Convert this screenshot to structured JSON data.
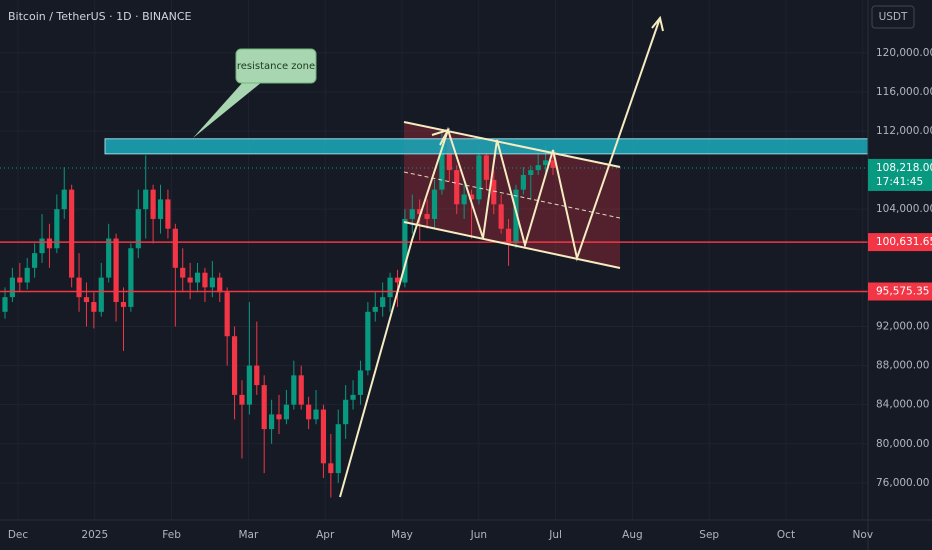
{
  "chart_data": {
    "type": "candlestick",
    "title": "Bitcoin / TetherUS · 1D · BINANCE",
    "currency": "USDT",
    "annotation": "resistance zone",
    "up_color": "#089981",
    "down_color": "#f23645",
    "ylim": [
      72200,
      125400
    ],
    "yticks": [
      {
        "value": 120000,
        "label": "120,000.00"
      },
      {
        "value": 116000,
        "label": "116,000.00"
      },
      {
        "value": 112000,
        "label": "112,000.00"
      },
      {
        "value": 104000,
        "label": "104,000.00"
      },
      {
        "value": 92000,
        "label": "92,000.00"
      },
      {
        "value": 88000,
        "label": "88,000.00"
      },
      {
        "value": 84000,
        "label": "84,000.00"
      },
      {
        "value": 80000,
        "label": "80,000.00"
      },
      {
        "value": 76000,
        "label": "76,000.00"
      }
    ],
    "xticks": [
      "Dec",
      "2025",
      "Feb",
      "Mar",
      "Apr",
      "May",
      "Jun",
      "Jul",
      "Aug",
      "Sep",
      "Oct",
      "Nov"
    ],
    "levels": [
      {
        "value": 100631.65,
        "label": "100,631.65",
        "color": "#f23645"
      },
      {
        "value": 95575.35,
        "label": "95,575.35",
        "color": "#f23645"
      }
    ],
    "current_price": {
      "value": 108218,
      "label": "108,218.00",
      "countdown": "17:41:45",
      "color": "#089981"
    },
    "resistance_zone": [
      109660,
      111200
    ],
    "candles": [
      [
        93500,
        96000,
        92800,
        95000
      ],
      [
        95000,
        98000,
        94500,
        97000
      ],
      [
        97000,
        98500,
        95500,
        96500
      ],
      [
        96500,
        99000,
        95800,
        98000
      ],
      [
        98000,
        100500,
        97000,
        99500
      ],
      [
        99500,
        103500,
        98500,
        101000
      ],
      [
        101000,
        102500,
        98000,
        100000
      ],
      [
        100000,
        105500,
        99500,
        104000
      ],
      [
        104000,
        108300,
        103000,
        106000
      ],
      [
        106000,
        106500,
        96000,
        97000
      ],
      [
        97000,
        99500,
        93500,
        95000
      ],
      [
        95000,
        96500,
        92000,
        94500
      ],
      [
        94500,
        95500,
        91800,
        93500
      ],
      [
        93500,
        98500,
        93000,
        97000
      ],
      [
        97000,
        102500,
        96500,
        101000
      ],
      [
        101000,
        101500,
        92500,
        94500
      ],
      [
        94500,
        96000,
        89500,
        94000
      ],
      [
        94000,
        100500,
        93500,
        100000
      ],
      [
        100000,
        106000,
        99000,
        104000
      ],
      [
        104000,
        109500,
        101000,
        106000
      ],
      [
        106000,
        106500,
        100500,
        103000
      ],
      [
        103000,
        106500,
        101500,
        105000
      ],
      [
        105000,
        106000,
        101000,
        102000
      ],
      [
        102000,
        102500,
        92000,
        98000
      ],
      [
        98000,
        100000,
        95500,
        97000
      ],
      [
        97000,
        98500,
        94800,
        96500
      ],
      [
        96500,
        98500,
        95500,
        97500
      ],
      [
        97500,
        98000,
        94500,
        96000
      ],
      [
        96000,
        98700,
        95000,
        97000
      ],
      [
        97000,
        97500,
        94500,
        95500
      ],
      [
        95500,
        96000,
        88000,
        91000
      ],
      [
        91000,
        92000,
        82500,
        85000
      ],
      [
        85000,
        86500,
        78500,
        84000
      ],
      [
        84000,
        94500,
        83000,
        88000
      ],
      [
        88000,
        92500,
        85000,
        86000
      ],
      [
        86000,
        87000,
        77000,
        81500
      ],
      [
        81500,
        84500,
        80000,
        83000
      ],
      [
        83000,
        85000,
        81000,
        82500
      ],
      [
        82500,
        85500,
        82000,
        84000
      ],
      [
        84000,
        88500,
        83500,
        87000
      ],
      [
        87000,
        88000,
        83500,
        84000
      ],
      [
        84000,
        84800,
        81500,
        82500
      ],
      [
        82500,
        85500,
        82000,
        83500
      ],
      [
        83500,
        84000,
        76500,
        78000
      ],
      [
        78000,
        81000,
        74500,
        77000
      ],
      [
        77000,
        83500,
        76000,
        82000
      ],
      [
        82000,
        86000,
        80500,
        84500
      ],
      [
        84500,
        86500,
        83500,
        85000
      ],
      [
        85000,
        88500,
        84000,
        87500
      ],
      [
        87500,
        94500,
        87000,
        93500
      ],
      [
        93500,
        95500,
        92500,
        94000
      ],
      [
        94000,
        96500,
        93000,
        95000
      ],
      [
        95000,
        97500,
        93500,
        97000
      ],
      [
        97000,
        97800,
        94000,
        96500
      ],
      [
        96500,
        104000,
        96000,
        103000
      ],
      [
        103000,
        105500,
        101500,
        104000
      ],
      [
        104000,
        105000,
        100800,
        103500
      ],
      [
        103500,
        105000,
        102000,
        103000
      ],
      [
        103000,
        107000,
        102000,
        106000
      ],
      [
        106000,
        112000,
        105500,
        111000
      ],
      [
        111000,
        111500,
        106800,
        108000
      ],
      [
        108000,
        108500,
        103500,
        104500
      ],
      [
        104500,
        106500,
        103000,
        105500
      ],
      [
        105500,
        106000,
        101000,
        105000
      ],
      [
        105000,
        110500,
        104500,
        109500
      ],
      [
        109500,
        110000,
        106000,
        107000
      ],
      [
        107000,
        108000,
        103500,
        104500
      ],
      [
        104500,
        105500,
        101500,
        102000
      ],
      [
        102000,
        103000,
        98200,
        100500
      ],
      [
        100500,
        106500,
        100000,
        106000
      ],
      [
        106000,
        108300,
        105500,
        107500
      ],
      [
        107500,
        108500,
        105000,
        108000
      ],
      [
        108000,
        110000,
        107500,
        108500
      ],
      [
        108500,
        110500,
        107800,
        109000
      ],
      [
        109000,
        109500,
        107500,
        108218
      ]
    ]
  }
}
